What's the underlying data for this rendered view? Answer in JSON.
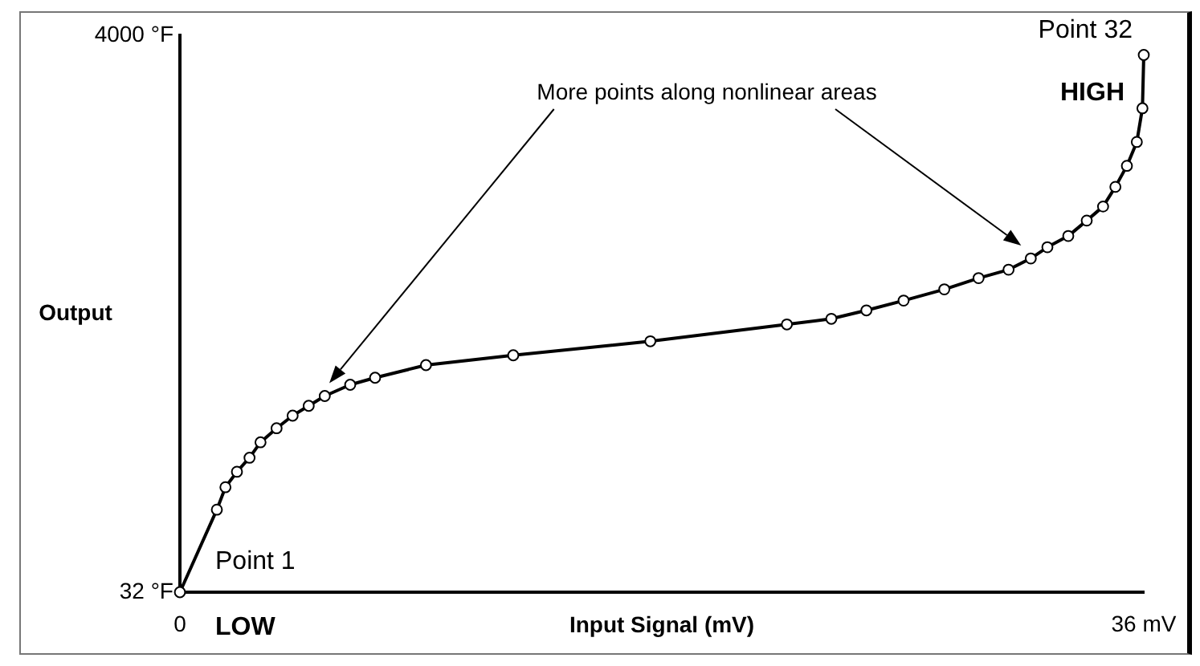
{
  "chart_data": {
    "type": "line",
    "xlabel": "Input Signal (mV)",
    "ylabel": "Output",
    "xlim": [
      0,
      36
    ],
    "xticks": [
      {
        "value": 0,
        "label": "0"
      },
      {
        "value": 36,
        "label": "36 mV"
      }
    ],
    "ylim": [
      32,
      4000
    ],
    "yticks": [
      {
        "value": 32,
        "label": "32 °F"
      },
      {
        "value": 4000,
        "label": "4000 °F"
      }
    ],
    "x": [
      0,
      1.38,
      1.7,
      2.13,
      2.6,
      3.01,
      3.61,
      4.21,
      4.81,
      5.41,
      6.36,
      7.29,
      9.19,
      12.45,
      17.57,
      22.67,
      24.33,
      25.64,
      27.03,
      28.55,
      29.83,
      30.95,
      31.78,
      32.4,
      33.18,
      33.87,
      34.48,
      34.94,
      35.37,
      35.74,
      35.95,
      36
    ],
    "series": [
      {
        "color": "#000000",
        "values": [
          32,
          620,
          780,
          890,
          990,
          1100,
          1200,
          1290,
          1360,
          1430,
          1510,
          1560,
          1650,
          1720,
          1820,
          1940,
          1980,
          2040,
          2110,
          2190,
          2270,
          2330,
          2410,
          2490,
          2570,
          2680,
          2780,
          2920,
          3070,
          3240,
          3480,
          3860
        ]
      }
    ],
    "marker": "circle",
    "line_style": "solid",
    "grid": false,
    "legend": false,
    "annotations": [
      "More points along nonlinear areas",
      {
        "text": "Point 1",
        "x": 0,
        "y": 32
      },
      {
        "text": "Point 32",
        "x": 36,
        "y": 3860
      },
      "LOW",
      "HIGH"
    ]
  }
}
